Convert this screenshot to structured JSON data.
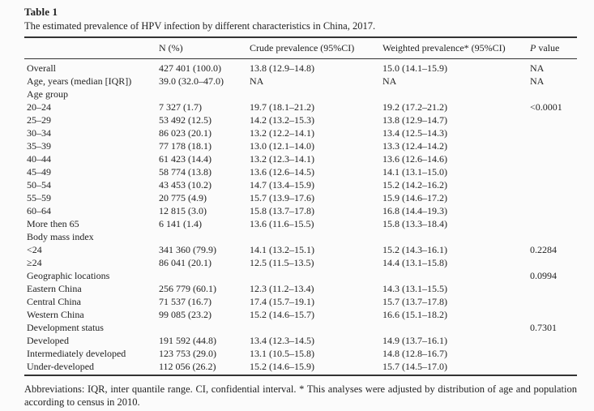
{
  "header": {
    "label": "Table 1",
    "caption": "The estimated prevalence of HPV infection by different characteristics in China, 2017."
  },
  "table": {
    "columns": [
      "",
      "N (%)",
      "Crude prevalence (95%CI)",
      "Weighted prevalence* (95%CI)"
    ],
    "p_column": {
      "italic": "P",
      "rest": " value"
    },
    "rows": [
      {
        "label": "Overall",
        "n": "427 401 (100.0)",
        "crude": "13.8 (12.9–14.8)",
        "weighted": "15.0 (14.1–15.9)",
        "p": "NA"
      },
      {
        "label": "Age, years (median [IQR])",
        "n": "39.0 (32.0–47.0)",
        "crude": "NA",
        "weighted": "NA",
        "p": "NA"
      },
      {
        "label": "Age group",
        "n": "",
        "crude": "",
        "weighted": "",
        "p": ""
      },
      {
        "label": "20–24",
        "n": "7 327 (1.7)",
        "crude": "19.7 (18.1–21.2)",
        "weighted": "19.2 (17.2–21.2)",
        "p": "<0.0001"
      },
      {
        "label": "25–29",
        "n": "53 492 (12.5)",
        "crude": "14.2 (13.2–15.3)",
        "weighted": "13.8 (12.9–14.7)",
        "p": ""
      },
      {
        "label": "30–34",
        "n": "86 023 (20.1)",
        "crude": "13.2 (12.2–14.1)",
        "weighted": "13.4 (12.5–14.3)",
        "p": ""
      },
      {
        "label": "35–39",
        "n": "77 178 (18.1)",
        "crude": "13.0 (12.1–14.0)",
        "weighted": "13.3 (12.4–14.2)",
        "p": ""
      },
      {
        "label": "40–44",
        "n": "61 423 (14.4)",
        "crude": "13.2 (12.3–14.1)",
        "weighted": "13.6 (12.6–14.6)",
        "p": ""
      },
      {
        "label": "45–49",
        "n": "58 774 (13.8)",
        "crude": "13.6 (12.6–14.5)",
        "weighted": "14.1 (13.1–15.0)",
        "p": ""
      },
      {
        "label": "50–54",
        "n": "43 453 (10.2)",
        "crude": "14.7 (13.4–15.9)",
        "weighted": "15.2 (14.2–16.2)",
        "p": ""
      },
      {
        "label": "55–59",
        "n": "20 775 (4.9)",
        "crude": "15.7 (13.9–17.6)",
        "weighted": "15.9 (14.6–17.2)",
        "p": ""
      },
      {
        "label": "60–64",
        "n": "12 815 (3.0)",
        "crude": "15.8 (13.7–17.8)",
        "weighted": "16.8 (14.4–19.3)",
        "p": ""
      },
      {
        "label": "More then 65",
        "n": "6 141 (1.4)",
        "crude": "13.6 (11.6–15.5)",
        "weighted": "15.8 (13.3–18.4)",
        "p": ""
      },
      {
        "label": "Body mass index",
        "n": "",
        "crude": "",
        "weighted": "",
        "p": ""
      },
      {
        "label": "<24",
        "n": "341 360 (79.9)",
        "crude": "14.1 (13.2–15.1)",
        "weighted": "15.2 (14.3–16.1)",
        "p": "0.2284"
      },
      {
        "label": "≥24",
        "n": "86 041 (20.1)",
        "crude": "12.5 (11.5–13.5)",
        "weighted": "14.4 (13.1–15.8)",
        "p": ""
      },
      {
        "label": "Geographic locations",
        "n": "",
        "crude": "",
        "weighted": "",
        "p": "0.0994"
      },
      {
        "label": "Eastern China",
        "n": "256 779 (60.1)",
        "crude": "12.3 (11.2–13.4)",
        "weighted": "14.3 (13.1–15.5)",
        "p": ""
      },
      {
        "label": "Central China",
        "n": "71 537 (16.7)",
        "crude": "17.4 (15.7–19.1)",
        "weighted": "15.7 (13.7–17.8)",
        "p": ""
      },
      {
        "label": "Western China",
        "n": "99 085 (23.2)",
        "crude": "15.2 (14.6–15.7)",
        "weighted": "16.6 (15.1–18.2)",
        "p": ""
      },
      {
        "label": "Development status",
        "n": "",
        "crude": "",
        "weighted": "",
        "p": "0.7301"
      },
      {
        "label": "Developed",
        "n": "191 592 (44.8)",
        "crude": "13.4 (12.3–14.5)",
        "weighted": "14.9 (13.7–16.1)",
        "p": ""
      },
      {
        "label": "Intermediately developed",
        "n": "123 753 (29.0)",
        "crude": "13.1 (10.5–15.8)",
        "weighted": "14.8 (12.8–16.7)",
        "p": ""
      },
      {
        "label": "Under-developed",
        "n": "112 056 (26.2)",
        "crude": "15.2 (14.6–15.9)",
        "weighted": "15.7 (14.5–17.0)",
        "p": ""
      }
    ]
  },
  "footnote": "Abbreviations: IQR, inter quantile range. CI, confidential interval. * This analyses were adjusted by distribution of age and population according to census in 2010."
}
